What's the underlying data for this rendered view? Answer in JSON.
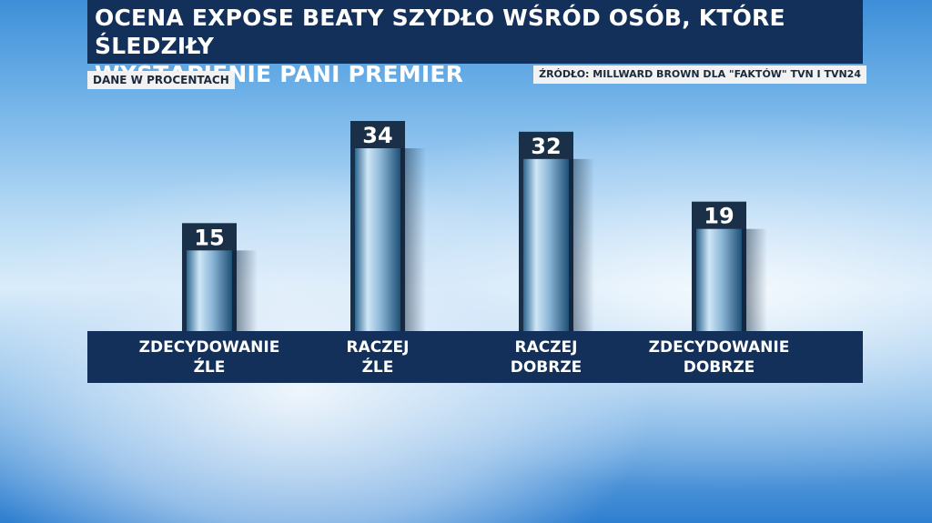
{
  "header": {
    "title_line1": "OCENA EXPOSE BEATY SZYDŁO WŚRÓD OSÓB, KTÓRE ŚLEDZIŁY",
    "title_line2": "WYSTĄPIENIE PANI PREMIER",
    "unit_note": "DANE W PROCENTACH",
    "source": "ŹRÓDŁO: MILLWARD BROWN DLA \"FAKTÓW\" TVN I TVN24"
  },
  "colors": {
    "band": "#12305a",
    "bar_light": "#cfe6f6",
    "bar_dark": "#2d6790",
    "label_bg": "#1a2f48"
  },
  "chart_data": {
    "type": "bar",
    "categories": [
      [
        "ZDECYDOWANIE",
        "ŹLE"
      ],
      [
        "RACZEJ",
        "ŹLE"
      ],
      [
        "RACZEJ",
        "DOBRZE"
      ],
      [
        "ZDECYDOWANIE",
        "DOBRZE"
      ]
    ],
    "values": [
      15,
      34,
      32,
      19
    ],
    "ylim": [
      0,
      40
    ]
  }
}
